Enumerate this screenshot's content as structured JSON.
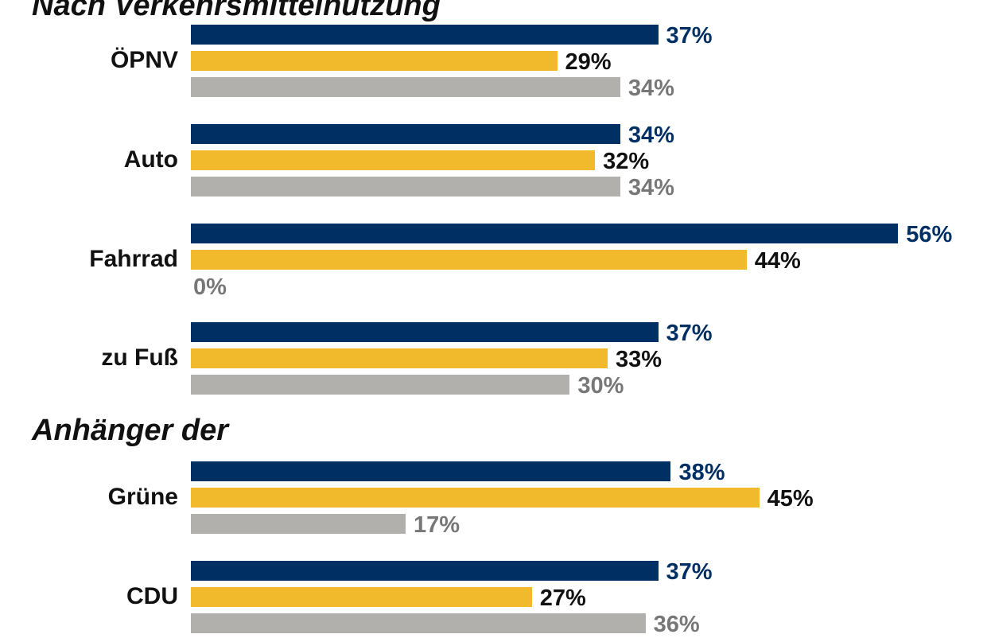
{
  "chart_data": {
    "type": "bar",
    "orientation": "horizontal",
    "unit": "%",
    "colors": {
      "series1": "#003063",
      "series2": "#F0BA2C",
      "series3": "#B2B0AD",
      "label1": "#003063",
      "label2": "#111111",
      "label3": "#777777"
    },
    "sections": [
      {
        "title": "Nach Verkehrsmittelnutzung",
        "categories": [
          {
            "label": "ÖPNV",
            "values": [
              37,
              29,
              34
            ],
            "labels": [
              "37%",
              "29%",
              "34%"
            ]
          },
          {
            "label": "Auto",
            "values": [
              34,
              32,
              34
            ],
            "labels": [
              "34%",
              "32%",
              "34%"
            ]
          },
          {
            "label": "Fahrrad",
            "values": [
              56,
              44,
              0
            ],
            "labels": [
              "56%",
              "44%",
              "0%"
            ]
          },
          {
            "label": "zu Fuß",
            "values": [
              37,
              33,
              30
            ],
            "labels": [
              "37%",
              "33%",
              "30%"
            ]
          }
        ]
      },
      {
        "title": "Anhänger der",
        "categories": [
          {
            "label": "Grüne",
            "values": [
              38,
              45,
              17
            ],
            "labels": [
              "38%",
              "45%",
              "17%"
            ]
          },
          {
            "label": "CDU",
            "values": [
              37,
              27,
              36
            ],
            "labels": [
              "37%",
              "27%",
              "36%"
            ]
          }
        ]
      }
    ]
  }
}
